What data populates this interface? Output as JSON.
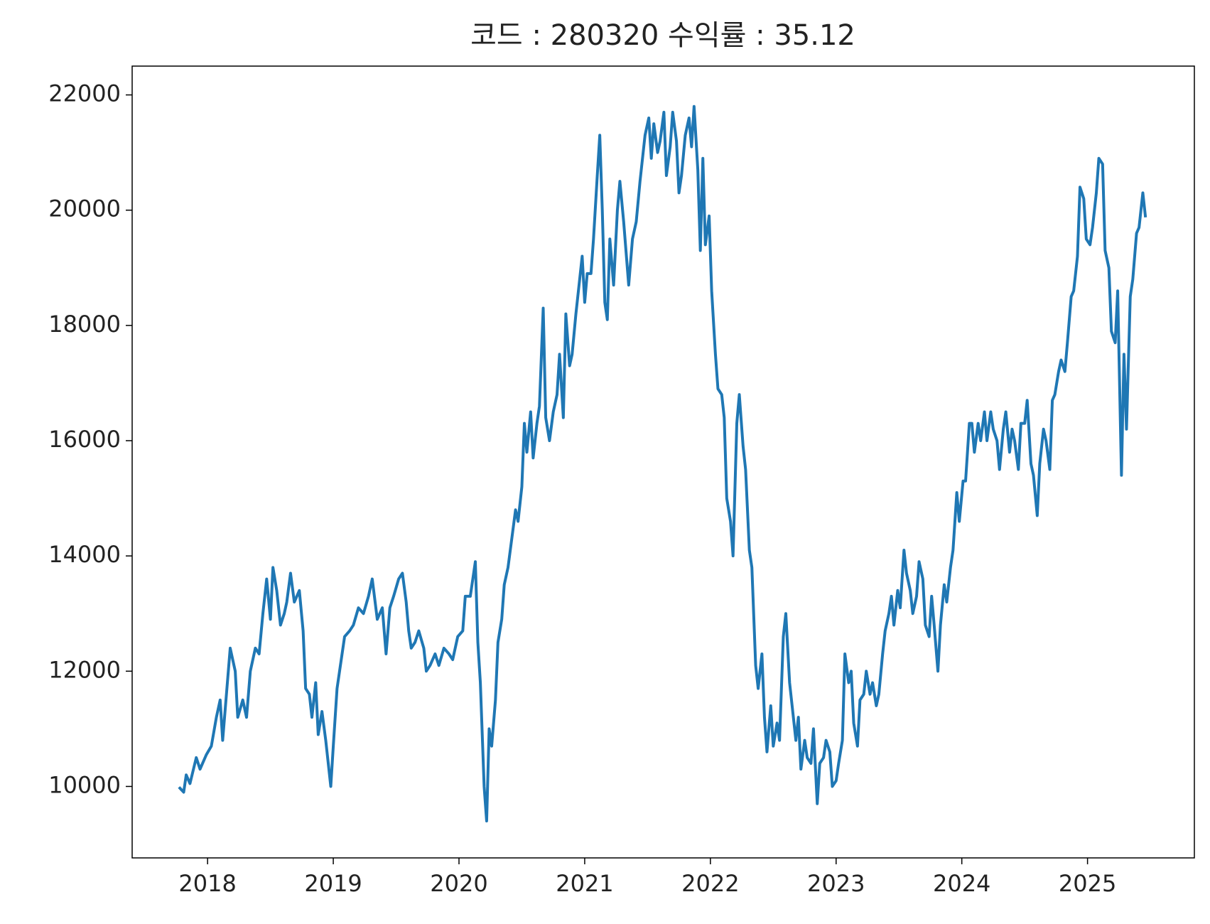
{
  "chart_data": {
    "type": "line",
    "title": "코드 : 280320 수익률 : 35.12",
    "color": "#1f77b4",
    "xlim": [
      2017.4,
      2025.85
    ],
    "xticks": [
      2018,
      2019,
      2020,
      2021,
      2022,
      2023,
      2024,
      2025
    ],
    "ylim": [
      8760,
      22500
    ],
    "yticks": [
      10000,
      12000,
      14000,
      16000,
      18000,
      20000,
      22000
    ],
    "grid": false,
    "x": [
      2017.78,
      2017.81,
      2017.83,
      2017.86,
      2017.91,
      2017.94,
      2017.99,
      2018.03,
      2018.07,
      2018.1,
      2018.12,
      2018.15,
      2018.18,
      2018.22,
      2018.24,
      2018.28,
      2018.31,
      2018.34,
      2018.38,
      2018.41,
      2018.44,
      2018.47,
      2018.5,
      2018.52,
      2018.55,
      2018.58,
      2018.61,
      2018.63,
      2018.66,
      2018.69,
      2018.73,
      2018.76,
      2018.78,
      2018.81,
      2018.83,
      2018.86,
      2018.88,
      2018.91,
      2018.94,
      2018.98,
      2019.0,
      2019.03,
      2019.05,
      2019.09,
      2019.13,
      2019.16,
      2019.2,
      2019.24,
      2019.28,
      2019.31,
      2019.35,
      2019.39,
      2019.42,
      2019.45,
      2019.48,
      2019.52,
      2019.55,
      2019.58,
      2019.6,
      2019.62,
      2019.65,
      2019.68,
      2019.72,
      2019.74,
      2019.77,
      2019.81,
      2019.84,
      2019.88,
      2019.92,
      2019.95,
      2019.99,
      2020.03,
      2020.05,
      2020.09,
      2020.13,
      2020.15,
      2020.17,
      2020.2,
      2020.22,
      2020.24,
      2020.26,
      2020.29,
      2020.31,
      2020.34,
      2020.36,
      2020.39,
      2020.42,
      2020.45,
      2020.47,
      2020.5,
      2020.52,
      2020.54,
      2020.57,
      2020.59,
      2020.62,
      2020.64,
      2020.67,
      2020.69,
      2020.72,
      2020.75,
      2020.78,
      2020.8,
      2020.83,
      2020.85,
      2020.88,
      2020.9,
      2020.93,
      2020.95,
      2020.98,
      2021.0,
      2021.02,
      2021.05,
      2021.07,
      2021.1,
      2021.12,
      2021.14,
      2021.16,
      2021.18,
      2021.2,
      2021.23,
      2021.26,
      2021.28,
      2021.31,
      2021.35,
      2021.38,
      2021.41,
      2021.44,
      2021.48,
      2021.51,
      2021.53,
      2021.55,
      2021.58,
      2021.6,
      2021.63,
      2021.65,
      2021.68,
      2021.7,
      2021.73,
      2021.75,
      2021.77,
      2021.8,
      2021.83,
      2021.85,
      2021.87,
      2021.9,
      2021.92,
      2021.94,
      2021.96,
      2021.99,
      2022.01,
      2022.04,
      2022.06,
      2022.09,
      2022.11,
      2022.13,
      2022.16,
      2022.18,
      2022.21,
      2022.23,
      2022.26,
      2022.28,
      2022.31,
      2022.33,
      2022.36,
      2022.38,
      2022.41,
      2022.43,
      2022.45,
      2022.48,
      2022.5,
      2022.53,
      2022.55,
      2022.58,
      2022.6,
      2022.63,
      2022.65,
      2022.68,
      2022.7,
      2022.72,
      2022.75,
      2022.77,
      2022.8,
      2022.82,
      2022.85,
      2022.87,
      2022.9,
      2022.92,
      2022.95,
      2022.97,
      2023.0,
      2023.02,
      2023.05,
      2023.07,
      2023.1,
      2023.12,
      2023.14,
      2023.17,
      2023.19,
      2023.22,
      2023.24,
      2023.27,
      2023.29,
      2023.32,
      2023.34,
      2023.37,
      2023.39,
      2023.42,
      2023.44,
      2023.46,
      2023.49,
      2023.51,
      2023.54,
      2023.56,
      2023.59,
      2023.61,
      2023.64,
      2023.66,
      2023.69,
      2023.71,
      2023.74,
      2023.76,
      2023.78,
      2023.81,
      2023.83,
      2023.86,
      2023.88,
      2023.91,
      2023.93,
      2023.96,
      2023.98,
      2024.01,
      2024.03,
      2024.06,
      2024.08,
      2024.1,
      2024.13,
      2024.15,
      2024.18,
      2024.2,
      2024.23,
      2024.25,
      2024.28,
      2024.3,
      2024.33,
      2024.35,
      2024.38,
      2024.4,
      2024.42,
      2024.45,
      2024.47,
      2024.5,
      2024.52,
      2024.55,
      2024.57,
      2024.6,
      2024.62,
      2024.65,
      2024.67,
      2024.7,
      2024.72,
      2024.74,
      2024.77,
      2024.79,
      2024.82,
      2024.84,
      2024.87,
      2024.89,
      2024.92,
      2024.94,
      2024.97,
      2024.99,
      2025.02,
      2025.04,
      2025.07,
      2025.09,
      2025.12,
      2025.14,
      2025.17,
      2025.19,
      2025.22,
      2025.24,
      2025.27,
      2025.29,
      2025.31,
      2025.34,
      2025.36,
      2025.39,
      2025.41,
      2025.44,
      2025.46
    ],
    "values": [
      9970,
      9900,
      10200,
      10050,
      10500,
      10300,
      10550,
      10700,
      11200,
      11500,
      10800,
      11600,
      12400,
      12000,
      11200,
      11500,
      11200,
      12000,
      12400,
      12300,
      13000,
      13600,
      12900,
      13800,
      13400,
      12800,
      13000,
      13200,
      13700,
      13200,
      13400,
      12700,
      11700,
      11600,
      11200,
      11800,
      10900,
      11300,
      10800,
      10000,
      10700,
      11700,
      12000,
      12600,
      12700,
      12800,
      13100,
      13000,
      13300,
      13600,
      12900,
      13100,
      12300,
      13100,
      13300,
      13600,
      13700,
      13200,
      12700,
      12400,
      12500,
      12700,
      12400,
      12000,
      12100,
      12300,
      12100,
      12400,
      12300,
      12200,
      12600,
      12700,
      13300,
      13300,
      13900,
      12500,
      11800,
      10000,
      9400,
      11000,
      10700,
      11500,
      12500,
      12900,
      13500,
      13800,
      14300,
      14800,
      14600,
      15200,
      16300,
      15800,
      16500,
      15700,
      16300,
      16600,
      18300,
      16400,
      16000,
      16500,
      16800,
      17500,
      16400,
      18200,
      17300,
      17500,
      18200,
      18600,
      19200,
      18400,
      18900,
      18900,
      19500,
      20600,
      21300,
      20000,
      18400,
      18100,
      19500,
      18700,
      20000,
      20500,
      19800,
      18700,
      19500,
      19800,
      20500,
      21300,
      21600,
      20900,
      21500,
      21000,
      21200,
      21700,
      20600,
      21100,
      21700,
      21200,
      20300,
      20600,
      21300,
      21600,
      21100,
      21800,
      20700,
      19300,
      20900,
      19400,
      19900,
      18600,
      17500,
      16900,
      16800,
      16400,
      15000,
      14600,
      14000,
      16300,
      16800,
      15900,
      15500,
      14100,
      13800,
      12100,
      11700,
      12300,
      11200,
      10600,
      11400,
      10700,
      11100,
      10800,
      12600,
      13000,
      11800,
      11400,
      10800,
      11200,
      10300,
      10800,
      10500,
      10400,
      11000,
      9700,
      10400,
      10500,
      10800,
      10600,
      10000,
      10100,
      10400,
      10800,
      12300,
      11800,
      12000,
      11100,
      10700,
      11500,
      11600,
      12000,
      11600,
      11800,
      11400,
      11600,
      12300,
      12700,
      13000,
      13300,
      12800,
      13400,
      13100,
      14100,
      13700,
      13400,
      13000,
      13300,
      13900,
      13600,
      12800,
      12600,
      13300,
      12800,
      12000,
      12800,
      13500,
      13200,
      13800,
      14100,
      15100,
      14600,
      15300,
      15300,
      16300,
      16300,
      15800,
      16300,
      16000,
      16500,
      16000,
      16500,
      16200,
      16000,
      15500,
      16200,
      16500,
      15800,
      16200,
      16000,
      15500,
      16300,
      16300,
      16700,
      15600,
      15400,
      14700,
      15600,
      16200,
      16000,
      15500,
      16700,
      16800,
      17200,
      17400,
      17200,
      17700,
      18500,
      18600,
      19200,
      20400,
      20200,
      19500,
      19400,
      19700,
      20300,
      20900,
      20800,
      19300,
      19000,
      17900,
      17700,
      18600,
      15400,
      17500,
      16200,
      18500,
      18800,
      19600,
      19700,
      20300,
      19900
    ]
  }
}
